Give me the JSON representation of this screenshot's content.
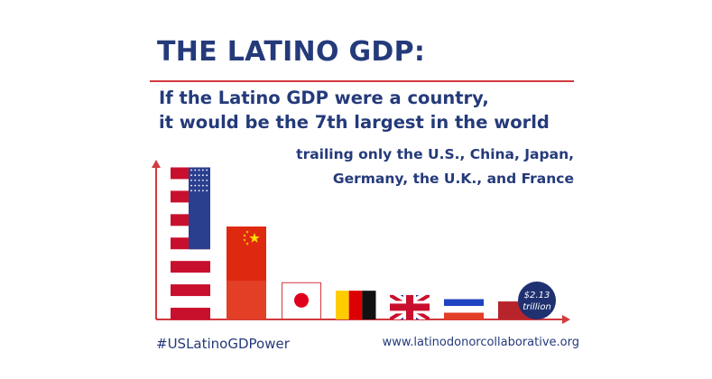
{
  "header": {
    "title": "THE LATINO GDP:",
    "subtitle_line1": "If the Latino GDP were a country,",
    "subtitle_line2": "it would be the 7th largest in the world",
    "note_line1": "trailing only the U.S., China, Japan,",
    "note_line2": "Germany, the U.K., and France"
  },
  "chart_data": {
    "type": "bar",
    "categories": [
      "United States",
      "China",
      "Japan",
      "Germany",
      "United Kingdom",
      "France",
      "Latino GDP"
    ],
    "values": [
      18.0,
      11.0,
      4.4,
      3.4,
      2.9,
      2.4,
      2.13
    ],
    "ylim": [
      0,
      18.8
    ],
    "grid": false,
    "legend": "none",
    "annotation": {
      "value_line1": "$2.13",
      "value_line2": "trillion"
    },
    "colors": {
      "axis": "#d23a3f",
      "latino_bar": "#b8242c",
      "badge": "#1f3170",
      "navy": "#243a7a"
    }
  },
  "footer": {
    "hashtag": "#USLatinoGDPower",
    "website": "www.latinodonorcollaborative.org"
  }
}
